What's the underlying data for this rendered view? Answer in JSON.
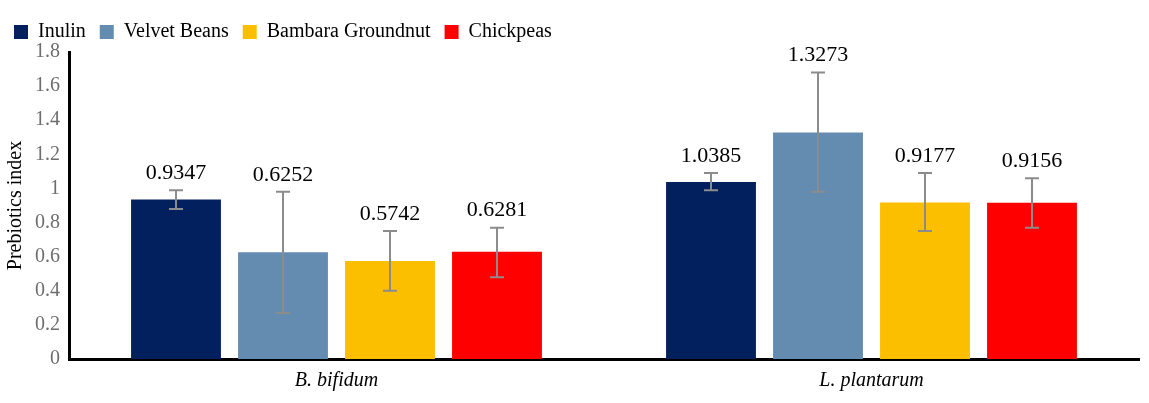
{
  "chart_data": {
    "type": "bar",
    "ylabel": "Prebiotics index",
    "categories": [
      "B. bifidum",
      "L. plantarum"
    ],
    "series": [
      {
        "name": "Inulin",
        "color": "#02205e",
        "values": [
          0.9347,
          1.0385
        ],
        "errors": [
          [
            0.88,
            0.99
          ],
          [
            0.99,
            1.09
          ]
        ]
      },
      {
        "name": "Velvet Beans",
        "color": "#648cb0",
        "values": [
          0.6252,
          1.3273
        ],
        "errors": [
          [
            0.27,
            0.98
          ],
          [
            0.98,
            1.68
          ]
        ]
      },
      {
        "name": "Bambara Groundnut",
        "color": "#fcbf00",
        "values": [
          0.5742,
          0.9177
        ],
        "errors": [
          [
            0.4,
            0.75
          ],
          [
            0.75,
            1.09
          ]
        ]
      },
      {
        "name": "Chickpeas",
        "color": "#fe0000",
        "values": [
          0.6281,
          0.9156
        ],
        "errors": [
          [
            0.48,
            0.77
          ],
          [
            0.77,
            1.06
          ]
        ]
      }
    ],
    "ylim": [
      0,
      1.8
    ],
    "yticks": [
      0,
      0.2,
      0.4,
      0.6,
      0.8,
      1,
      1.2,
      1.4,
      1.6,
      1.8
    ],
    "grid": false,
    "legend": "top left",
    "data_labels": true
  }
}
